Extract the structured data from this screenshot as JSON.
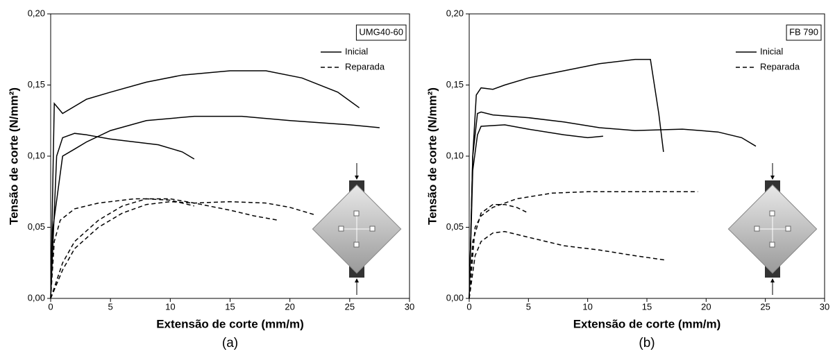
{
  "chart_data": [
    {
      "type": "line",
      "annotation": "UMG40-60",
      "caption": "(a)",
      "xlabel": "Extensão de corte (mm/m)",
      "ylabel": "Tensão de corte (N/mm²)",
      "xlim": [
        0,
        30
      ],
      "xticks": [
        0,
        5,
        10,
        15,
        20,
        25,
        30
      ],
      "ylim": [
        0,
        0.2
      ],
      "yticks": [
        {
          "value": 0,
          "label": "0,00"
        },
        {
          "value": 0.05,
          "label": "0,05"
        },
        {
          "value": 0.1,
          "label": "0,10"
        },
        {
          "value": 0.15,
          "label": "0,15"
        },
        {
          "value": 0.2,
          "label": "0,20"
        }
      ],
      "series": [
        {
          "name": "Inicial",
          "color": "#000000",
          "dash": "solid",
          "curves": [
            {
              "x": [
                0,
                0.3,
                1,
                3,
                5,
                8,
                11,
                15,
                18,
                21,
                24,
                25.8
              ],
              "values": [
                0,
                0.137,
                0.13,
                0.14,
                0.145,
                0.152,
                0.157,
                0.16,
                0.16,
                0.155,
                0.145,
                0.134
              ]
            },
            {
              "x": [
                0,
                0.2,
                1,
                2,
                3,
                5,
                8,
                12,
                16,
                20,
                25,
                27.5
              ],
              "values": [
                0,
                0.05,
                0.1,
                0.105,
                0.11,
                0.118,
                0.125,
                0.128,
                0.128,
                0.125,
                0.122,
                0.12
              ]
            },
            {
              "x": [
                0,
                0.5,
                1,
                2,
                3,
                5,
                7,
                9,
                11,
                12
              ],
              "values": [
                0,
                0.1,
                0.113,
                0.116,
                0.115,
                0.112,
                0.11,
                0.108,
                0.103,
                0.098
              ]
            }
          ]
        },
        {
          "name": "Reparada",
          "color": "#000000",
          "dash": "dashed",
          "curves": [
            {
              "x": [
                0,
                0.3,
                0.8,
                2,
                4,
                7,
                10,
                12,
                15,
                17,
                19
              ],
              "values": [
                0,
                0.04,
                0.055,
                0.063,
                0.067,
                0.07,
                0.07,
                0.067,
                0.062,
                0.058,
                0.055
              ]
            },
            {
              "x": [
                0,
                1,
                2,
                4,
                6,
                8,
                10,
                12,
                15,
                18,
                20,
                22
              ],
              "values": [
                0,
                0.02,
                0.035,
                0.05,
                0.06,
                0.066,
                0.068,
                0.067,
                0.068,
                0.067,
                0.064,
                0.059
              ]
            },
            {
              "x": [
                0,
                1,
                2,
                4,
                6,
                8,
                10,
                12
              ],
              "values": [
                0,
                0.025,
                0.04,
                0.055,
                0.065,
                0.07,
                0.069,
                0.065
              ]
            }
          ]
        }
      ]
    },
    {
      "type": "line",
      "annotation": "FB 790",
      "caption": "(b)",
      "xlabel": "Extensão de corte (mm/m)",
      "ylabel": "Tensão de corte (N/mm²)",
      "xlim": [
        0,
        30
      ],
      "xticks": [
        0,
        5,
        10,
        15,
        20,
        25,
        30
      ],
      "ylim": [
        0,
        0.2
      ],
      "yticks": [
        {
          "value": 0,
          "label": "0,00"
        },
        {
          "value": 0.05,
          "label": "0,05"
        },
        {
          "value": 0.1,
          "label": "0,10"
        },
        {
          "value": 0.15,
          "label": "0,15"
        },
        {
          "value": 0.2,
          "label": "0,20"
        }
      ],
      "series": [
        {
          "name": "Inicial",
          "color": "#000000",
          "dash": "solid",
          "curves": [
            {
              "x": [
                0,
                0.3,
                0.6,
                1,
                2,
                3,
                5,
                8,
                11,
                14,
                15.3,
                16,
                16.4
              ],
              "values": [
                0,
                0.1,
                0.143,
                0.148,
                0.147,
                0.15,
                0.155,
                0.16,
                0.165,
                0.168,
                0.168,
                0.13,
                0.103
              ]
            },
            {
              "x": [
                0,
                0.3,
                0.7,
                1,
                2,
                5,
                8,
                11,
                14,
                18,
                21,
                23,
                24.2
              ],
              "values": [
                0,
                0.1,
                0.13,
                0.131,
                0.129,
                0.127,
                0.124,
                0.12,
                0.118,
                0.119,
                0.117,
                0.113,
                0.107
              ]
            },
            {
              "x": [
                0,
                0.3,
                0.7,
                1,
                3,
                5,
                8,
                10,
                11.3
              ],
              "values": [
                0,
                0.09,
                0.115,
                0.121,
                0.122,
                0.119,
                0.115,
                0.113,
                0.114
              ]
            }
          ]
        },
        {
          "name": "Reparada",
          "color": "#000000",
          "dash": "dashed",
          "curves": [
            {
              "x": [
                0,
                0.5,
                1,
                2,
                4,
                7,
                10,
                14,
                17,
                19.3
              ],
              "values": [
                0,
                0.05,
                0.058,
                0.064,
                0.07,
                0.074,
                0.075,
                0.075,
                0.075,
                0.075
              ]
            },
            {
              "x": [
                0,
                0.3,
                1,
                2,
                3,
                4,
                5
              ],
              "values": [
                0,
                0.04,
                0.06,
                0.066,
                0.066,
                0.064,
                0.06
              ]
            },
            {
              "x": [
                0,
                0.5,
                1,
                2,
                3,
                5,
                8,
                11,
                14,
                16.5
              ],
              "values": [
                0,
                0.03,
                0.04,
                0.046,
                0.047,
                0.043,
                0.037,
                0.034,
                0.03,
                0.027
              ]
            }
          ]
        }
      ]
    }
  ]
}
